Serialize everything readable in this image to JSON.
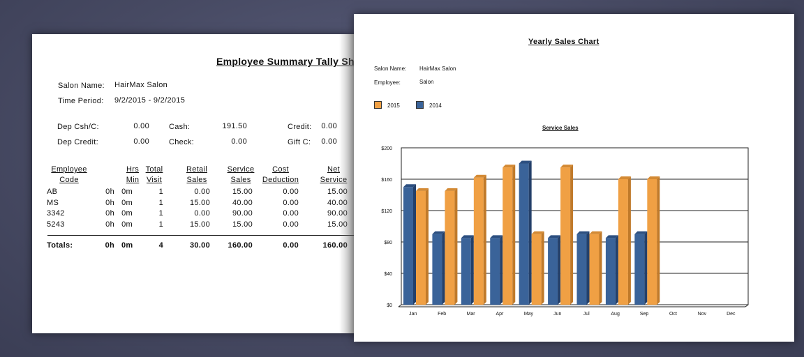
{
  "left_report": {
    "title": "Employee Summary Tally Sh",
    "salon_label": "Salon Name:",
    "salon_value": "HairMax Salon",
    "period_label": "Time Period:",
    "period_value": "9/2/2015 - 9/2/2015",
    "totals_box": [
      {
        "label": "Dep Csh/C:",
        "value": "0.00"
      },
      {
        "label": "Cash:",
        "value": "191.50"
      },
      {
        "label": "Credit:",
        "value": "0.00"
      },
      {
        "label": "Dep Credit:",
        "value": "0.00"
      },
      {
        "label": "Check:",
        "value": "0.00"
      },
      {
        "label": "Gift C:",
        "value": "0.00"
      }
    ],
    "columns": [
      [
        "Employee",
        "Code"
      ],
      [
        "Hrs",
        "Min"
      ],
      [
        "Total",
        "Visit"
      ],
      [
        "Retail",
        "Sales"
      ],
      [
        "Service",
        "Sales"
      ],
      [
        "Cost",
        "Deduction"
      ],
      [
        "Net",
        "Service"
      ]
    ],
    "rows": [
      [
        "AB",
        "0h",
        "0m",
        "1",
        "0.00",
        "15.00",
        "0.00",
        "15.00"
      ],
      [
        "MS",
        "0h",
        "0m",
        "1",
        "15.00",
        "40.00",
        "0.00",
        "40.00"
      ],
      [
        "3342",
        "0h",
        "0m",
        "1",
        "0.00",
        "90.00",
        "0.00",
        "90.00"
      ],
      [
        "5243",
        "0h",
        "0m",
        "1",
        "15.00",
        "15.00",
        "0.00",
        "15.00"
      ]
    ],
    "totals": [
      "Totals:",
      "0h",
      "0m",
      "4",
      "30.00",
      "160.00",
      "0.00",
      "160.00"
    ]
  },
  "right_report": {
    "title": "Yearly Sales Chart",
    "salon_label": "Salon Name:",
    "salon_value": "HairMax Salon",
    "employee_label": "Employee:",
    "employee_value": "Salon"
  },
  "chart_data": {
    "type": "bar",
    "title": "Service Sales",
    "categories": [
      "Jan",
      "Feb",
      "Mar",
      "Apr",
      "May",
      "Jun",
      "Jul",
      "Aug",
      "Sep",
      "Oct",
      "Nov",
      "Dec"
    ],
    "series": [
      {
        "name": "2014",
        "color": "#3a6399",
        "values": [
          150,
          90,
          85,
          85,
          180,
          85,
          90,
          85,
          90,
          null,
          null,
          null
        ]
      },
      {
        "name": "2015",
        "color": "#f0a044",
        "values": [
          145,
          145,
          162,
          175,
          90,
          175,
          90,
          160,
          160,
          null,
          null,
          null
        ]
      }
    ],
    "legend_order": [
      "2015",
      "2014"
    ],
    "yticks": [
      "$0",
      "$40",
      "$80",
      "$120",
      "$160",
      "$200"
    ],
    "ylim": [
      0,
      200
    ],
    "grid": true,
    "legend_placement": "top-left"
  }
}
